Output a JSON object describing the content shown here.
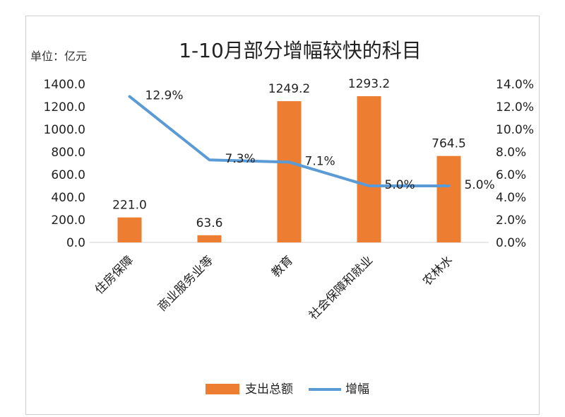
{
  "chart_data": {
    "type": "bar",
    "title": "1-10月部分增幅较快的科目",
    "unit_label": "单位：亿元",
    "categories": [
      "住房保障",
      "商业服务业等",
      "教育",
      "社会保障和就业",
      "农林水"
    ],
    "series": [
      {
        "name": "支出总额",
        "type": "bar",
        "axis": "left",
        "values": [
          221.0,
          63.6,
          1249.2,
          1293.2,
          764.5
        ],
        "labels": [
          "221.0",
          "63.6",
          "1249.2",
          "1293.2",
          "764.5"
        ],
        "color": "#ED7D31"
      },
      {
        "name": "增幅",
        "type": "line",
        "axis": "right",
        "values": [
          12.9,
          7.3,
          7.1,
          5.0,
          5.0
        ],
        "labels": [
          "12.9%",
          "7.3%",
          "7.1%",
          "5.0%",
          "5.0%"
        ],
        "color": "#5B9BD5"
      }
    ],
    "y_left": {
      "range": [
        0,
        1400
      ],
      "ticks": [
        "0.0",
        "200.0",
        "400.0",
        "600.0",
        "800.0",
        "1000.0",
        "1200.0",
        "1400.0"
      ]
    },
    "y_right": {
      "range": [
        0,
        14
      ],
      "ticks": [
        "0.0%",
        "2.0%",
        "4.0%",
        "6.0%",
        "8.0%",
        "10.0%",
        "12.0%",
        "14.0%"
      ]
    },
    "grid": false,
    "legend": "bottom"
  }
}
